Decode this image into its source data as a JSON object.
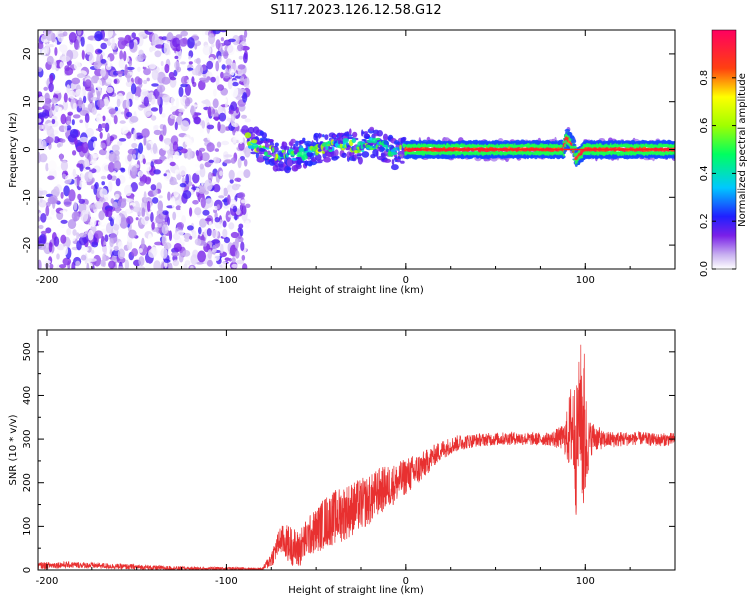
{
  "title": "S117.2023.126.12.58.G12",
  "chart_data": [
    {
      "type": "heatmap",
      "xlabel": "Height of straight line (km)",
      "ylabel": "Frequency (Hz)",
      "xlim": [
        -205,
        150
      ],
      "ylim": [
        -25,
        25
      ],
      "x_ticks": [
        -200,
        -100,
        0,
        100
      ],
      "y_ticks": [
        -20,
        -10,
        0,
        10,
        20
      ],
      "colorbar": {
        "label": "Normalized spectral amplitude",
        "range": [
          0.0,
          1.0
        ],
        "ticks": [
          0.0,
          0.2,
          0.4,
          0.6,
          0.8
        ],
        "tick_labels": [
          "0.0",
          "0.2",
          "0.4",
          "0.6",
          "0.8"
        ]
      },
      "regions": [
        {
          "x_from": -205,
          "x_to": -88,
          "pattern": "broadband noise",
          "amplitude": [
            0.0,
            0.2
          ]
        },
        {
          "x_from": -88,
          "x_to": 0,
          "pattern": "wavering trace near 0 Hz",
          "amplitude": [
            0.1,
            0.7
          ]
        },
        {
          "x_from": 0,
          "x_to": 150,
          "pattern": "steady trace at 0 Hz",
          "amplitude": [
            0.8,
            1.0
          ]
        }
      ],
      "trace": {
        "x": [
          -88,
          -80,
          -70,
          -60,
          -50,
          -40,
          -30,
          -25,
          -20,
          -15,
          -10,
          -5,
          0,
          50,
          88,
          90,
          93,
          95,
          100,
          150
        ],
        "y": [
          2,
          0.5,
          -1.5,
          -1,
          0,
          1,
          1,
          0.5,
          1.5,
          1,
          0,
          -1,
          0,
          0,
          0,
          2.5,
          1,
          -2,
          0,
          0
        ]
      }
    },
    {
      "type": "line",
      "xlabel": "Height of straight line (km)",
      "ylabel": "SNR (10 * v/v)",
      "xlim": [
        -205,
        150
      ],
      "ylim": [
        0,
        550
      ],
      "x_ticks": [
        -200,
        -100,
        0,
        100
      ],
      "y_ticks": [
        0,
        100,
        200,
        300,
        400,
        500
      ],
      "series": [
        {
          "color": "#e83030",
          "x": [
            -205,
            -190,
            -180,
            -170,
            -160,
            -150,
            -140,
            -130,
            -120,
            -110,
            -100,
            -90,
            -80,
            -75,
            -70,
            -65,
            -60,
            -55,
            -50,
            -45,
            -40,
            -35,
            -30,
            -25,
            -20,
            -15,
            -10,
            -5,
            0,
            5,
            10,
            15,
            20,
            25,
            30,
            40,
            50,
            60,
            70,
            80,
            85,
            90,
            93,
            95,
            97,
            99,
            101,
            103,
            105,
            110,
            120,
            130,
            140,
            150
          ],
          "y": [
            10,
            12,
            11,
            10,
            8,
            7,
            5,
            4,
            3,
            3,
            3,
            3,
            2,
            25,
            70,
            60,
            45,
            75,
            90,
            110,
            120,
            130,
            140,
            150,
            160,
            180,
            190,
            200,
            215,
            225,
            240,
            260,
            275,
            285,
            292,
            298,
            300,
            302,
            300,
            300,
            302,
            305,
            340,
            265,
            380,
            320,
            280,
            300,
            305,
            298,
            300,
            302,
            298,
            300
          ],
          "envelope": {
            "x": [
              -205,
              -150,
              -100,
              -80,
              -75,
              -65,
              -55,
              -45,
              -35,
              -25,
              -15,
              -5,
              5,
              15,
              25,
              40,
              60,
              80,
              88,
              93,
              95,
              97,
              99,
              101,
              103,
              110,
              130,
              150
            ],
            "half_width": [
              8,
              6,
              4,
              3,
              20,
              45,
              45,
              60,
              65,
              60,
              55,
              45,
              40,
              25,
              20,
              15,
              15,
              15,
              30,
              120,
              150,
              130,
              240,
              80,
              40,
              20,
              15,
              15
            ]
          }
        }
      ]
    }
  ]
}
